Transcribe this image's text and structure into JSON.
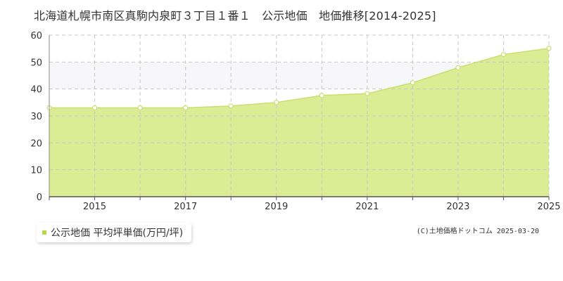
{
  "chart_data": {
    "type": "area",
    "title": "北海道札幌市南区真駒内泉町３丁目１番１　公示地価　地価推移[2014-2025]",
    "x": [
      2014,
      2015,
      2016,
      2017,
      2018,
      2019,
      2020,
      2021,
      2022,
      2023,
      2024,
      2025
    ],
    "xticks": [
      2015,
      2017,
      2019,
      2021,
      2023,
      2025
    ],
    "ylim": [
      0,
      60
    ],
    "yticks": [
      0,
      10,
      20,
      30,
      40,
      50,
      60
    ],
    "grid": true,
    "legend_position": "bottom-left",
    "series": [
      {
        "name": "公示地価 平均坪単価(万円/坪)",
        "values": [
          33.0,
          33.0,
          33.0,
          33.0,
          33.7,
          35.0,
          37.6,
          38.3,
          42.3,
          47.9,
          52.8,
          55.1
        ]
      }
    ],
    "fill_color": "#dcec95",
    "line_color": "#c9e06f",
    "band_color": "#f7f7f9"
  },
  "legend": {
    "label": "公示地価 平均坪単価(万円/坪)",
    "marker_color": "#b3d94a"
  },
  "copyright": "(C)土地価格ドットコム 2025-03-20"
}
